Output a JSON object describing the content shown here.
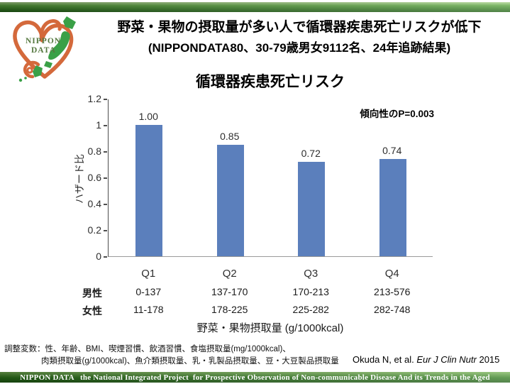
{
  "logo": {
    "line1": "NIPPON",
    "line2": "DATA"
  },
  "header": {
    "title": "野菜・果物の摂取量が多い人で循環器疾患死亡リスクが低下",
    "subtitle": "(NIPPONDATA80、30-79歳男女9112名、24年追跡結果)"
  },
  "chart_data": {
    "type": "bar",
    "title": "循環器疾患死亡リスク",
    "categories": [
      "Q1",
      "Q2",
      "Q3",
      "Q4"
    ],
    "values": [
      1.0,
      0.85,
      0.72,
      0.74
    ],
    "value_labels": [
      "1.00",
      "0.85",
      "0.72",
      "0.74"
    ],
    "ylabel": "ハザード比",
    "xlabel": "野菜・果物摂取量 (g/1000kcal)",
    "ylim": [
      0,
      1.2
    ],
    "yticks": [
      0,
      0.2,
      0.4,
      0.6,
      0.8,
      1,
      1.2
    ],
    "ytick_labels": [
      "0",
      "0.2",
      "0.4",
      "0.6",
      "0.8",
      "1",
      "1.2"
    ],
    "annotation": "傾向性のP=0.003",
    "grid": false,
    "legend": null,
    "bar_color": "#5b7fbc",
    "rows": [
      {
        "label": "男性",
        "values": [
          "0-137",
          "137-170",
          "170-213",
          "213-576"
        ]
      },
      {
        "label": "女性",
        "values": [
          "11-178",
          "178-225",
          "225-282",
          "282-748"
        ]
      }
    ]
  },
  "footnote": {
    "line1": "調整変数：性、年齢、BMI、喫煙習慣、飲酒習慣、食塩摂取量(mg/1000kcal)、",
    "line2": "肉類摂取量(g/1000kcal)、魚介類摂取量、乳・乳製品摂取量、豆・大豆製品摂取量",
    "citation_authors": "Okuda N, et al. ",
    "citation_journal": "Eur J Clin Nutr",
    "citation_year": " 2015"
  },
  "footer_bar": {
    "text": "NIPPON DATA   the National Integrated Project  for Prospective Observation of Non-communicable Disease And its Trends in the Aged"
  },
  "colors": {
    "bar_blue": "#5b7fbc",
    "green_dark": "#1f5f13",
    "green_light": "#aed48f",
    "heart_orange": "#d4693b",
    "japan_green": "#3aa047"
  }
}
